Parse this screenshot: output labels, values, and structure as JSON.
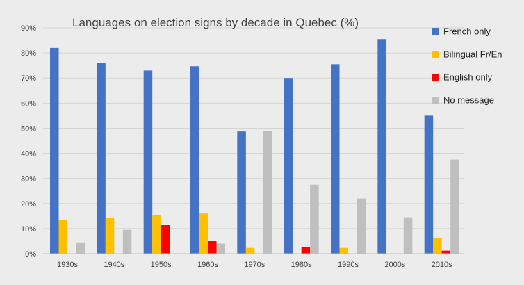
{
  "chart_data": {
    "type": "bar",
    "title": "Languages on election signs by decade in Quebec (%)",
    "xlabel": "",
    "ylabel": "",
    "ylim": [
      0,
      90
    ],
    "yticks": [
      "0%",
      "10%",
      "20%",
      "30%",
      "40%",
      "50%",
      "60%",
      "70%",
      "80%",
      "90%"
    ],
    "grid": true,
    "legend_position": "right",
    "categories": [
      "1930s",
      "1940s",
      "1950s",
      "1960s",
      "1970s",
      "1980s",
      "1990s",
      "2000s",
      "2010s"
    ],
    "series": [
      {
        "name": "French only",
        "color": "#4472c4",
        "values": [
          82,
          76,
          73,
          74.7,
          48.7,
          70,
          75.5,
          85.5,
          55
        ]
      },
      {
        "name": "Bilingual Fr/En",
        "color": "#ffc000",
        "values": [
          13.5,
          14.2,
          15.4,
          16,
          2.3,
          0,
          2.3,
          0,
          6.2
        ]
      },
      {
        "name": "English only",
        "color": "#ff0000",
        "values": [
          0,
          0,
          11.5,
          5.2,
          0,
          2.5,
          0,
          0,
          1.2
        ]
      },
      {
        "name": "No message",
        "color": "#bfbfbf",
        "values": [
          4.5,
          9.5,
          0,
          4,
          48.8,
          27.5,
          22,
          14.5,
          37.5
        ]
      }
    ]
  }
}
